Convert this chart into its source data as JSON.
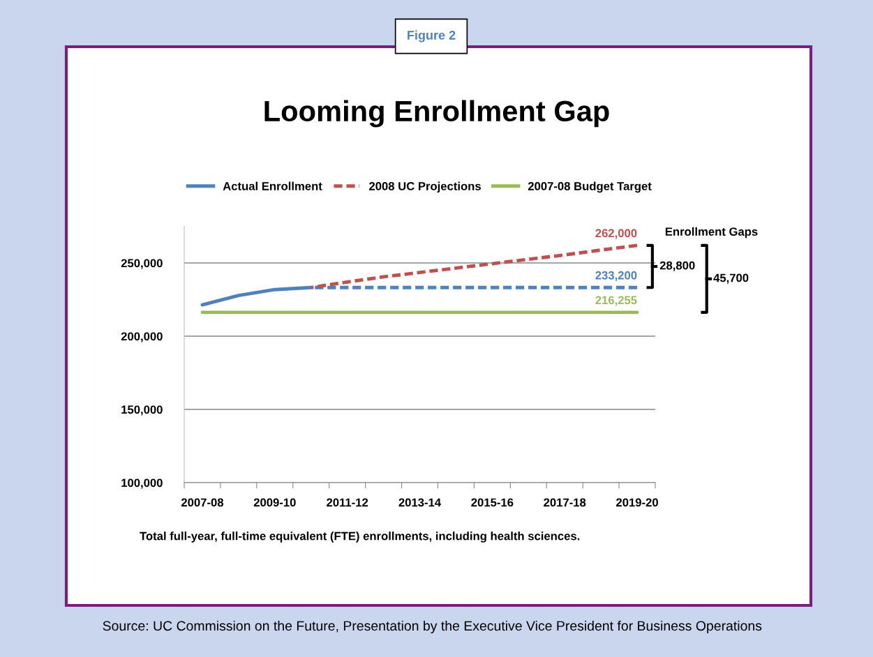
{
  "chart_data": {
    "type": "line",
    "title": "Looming Enrollment Gap",
    "categories": [
      "2007-08",
      null,
      "2009-10",
      null,
      "2011-12",
      null,
      "2013-14",
      null,
      "2015-16",
      null,
      "2017-18",
      null,
      "2019-20"
    ],
    "series": [
      {
        "name": "Actual Enrollment",
        "color": "#4f81bd",
        "line_style": "solid",
        "values": [
          221400,
          227800,
          231800,
          233200,
          null,
          null,
          null,
          null,
          null,
          null,
          null,
          null,
          null
        ]
      },
      {
        "color": "#4f81bd",
        "line_style": "dashed",
        "values": [
          null,
          null,
          null,
          233200,
          233200,
          233200,
          233200,
          233200,
          233200,
          233200,
          233200,
          233200,
          233200
        ],
        "value_labels": [
          null,
          null,
          null,
          null,
          null,
          null,
          null,
          null,
          null,
          null,
          null,
          null,
          "233,200"
        ]
      },
      {
        "name": "2008 UC Projections",
        "color": "#c0504d",
        "line_style": "dashed",
        "values": [
          null,
          null,
          null,
          233200,
          237000,
          240500,
          243500,
          246500,
          249500,
          252500,
          255500,
          258800,
          262000
        ],
        "value_labels": [
          null,
          null,
          null,
          null,
          null,
          null,
          null,
          null,
          null,
          null,
          null,
          null,
          "262,000"
        ]
      },
      {
        "name": "2007-08 Budget Target",
        "color": "#9bbb59",
        "line_style": "solid",
        "values": [
          216255,
          216255,
          216255,
          216255,
          216255,
          216255,
          216255,
          216255,
          216255,
          216255,
          216255,
          216255,
          216255
        ],
        "value_labels": [
          null,
          null,
          null,
          null,
          null,
          null,
          null,
          null,
          null,
          null,
          null,
          null,
          "216,255"
        ]
      }
    ],
    "ylim": [
      100000,
      275000
    ],
    "yticks": [
      {
        "value": 100000,
        "label": "100,000"
      },
      {
        "value": 150000,
        "label": "150,000"
      },
      {
        "value": 200000,
        "label": "200,000"
      },
      {
        "value": 250000,
        "label": "250,000"
      }
    ],
    "grid": "y",
    "legend": "top",
    "annotations": [
      "Figure 2",
      "Enrollment Gaps",
      "28,800",
      "45,700",
      "Total full-year, full-time equivalent (FTE) enrollments, including health sciences.",
      "Source: UC Commission on the Future, Presentation by the Executive Vice President for Business Operations"
    ]
  }
}
